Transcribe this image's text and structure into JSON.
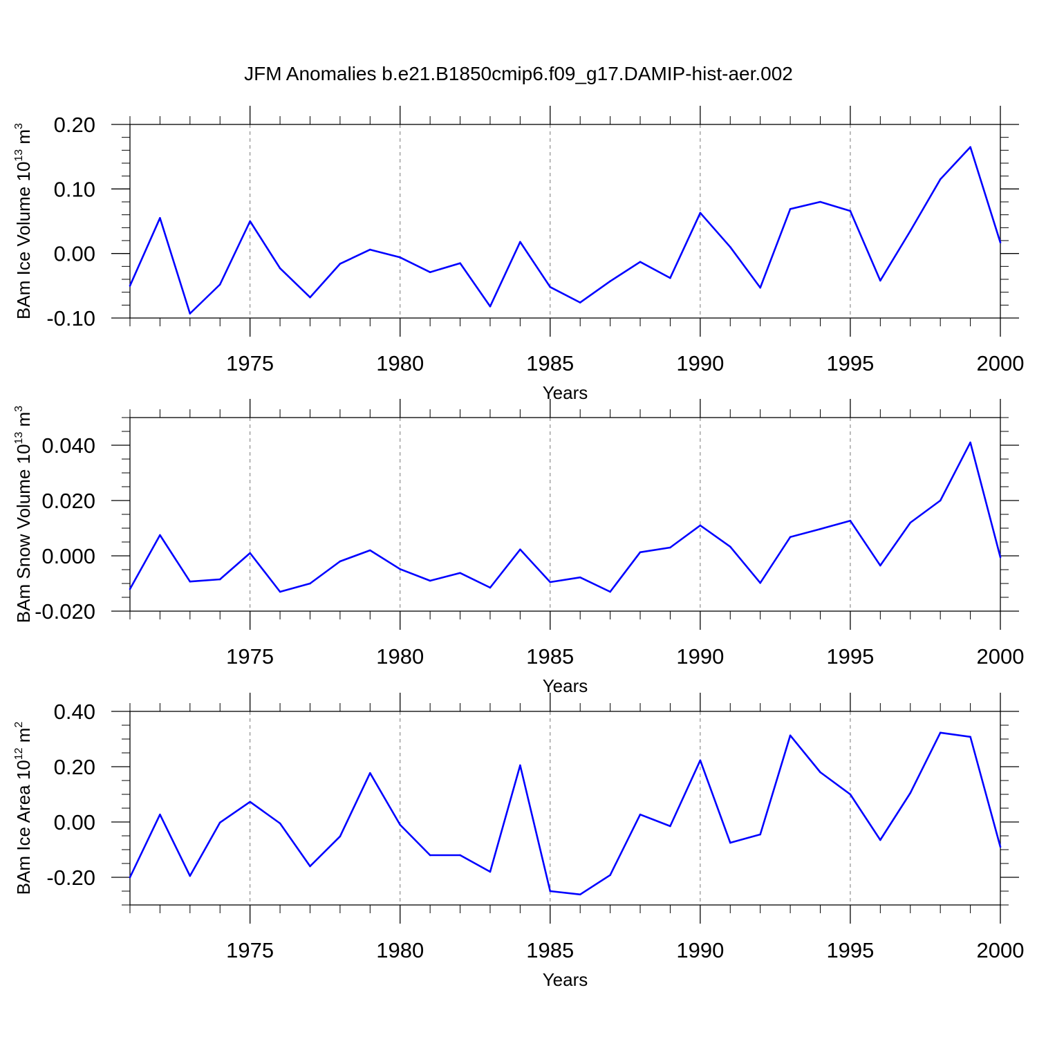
{
  "title": "JFM Anomalies b.e21.B1850cmip6.f09_g17.DAMIP-hist-aer.002",
  "line_color": "#0000ff",
  "chart_data": [
    {
      "type": "line",
      "ylabel_main": "BAm Ice Volume 10",
      "ylabel_exp": "13",
      "ylabel_tail": " m",
      "ylabel_unit_exp": "3",
      "xlabel": "Years",
      "xlim": [
        1971,
        2000
      ],
      "ylim": [
        -0.1,
        0.2
      ],
      "yticks": [
        -0.1,
        0.0,
        0.1,
        0.2
      ],
      "ytick_labels": [
        "-0.10",
        "0.00",
        "0.10",
        "0.20"
      ],
      "yminor_step": 0.02,
      "xticks": [
        1975,
        1980,
        1985,
        1990,
        1995,
        2000
      ],
      "xtick_labels": [
        "1975",
        "1980",
        "1985",
        "1990",
        "1995",
        "2000"
      ],
      "x": [
        1971,
        1972,
        1973,
        1974,
        1975,
        1976,
        1977,
        1978,
        1979,
        1980,
        1981,
        1982,
        1983,
        1984,
        1985,
        1986,
        1987,
        1988,
        1989,
        1990,
        1991,
        1992,
        1993,
        1994,
        1995,
        1996,
        1997,
        1998,
        1999,
        2000
      ],
      "values": [
        -0.05,
        0.055,
        -0.093,
        -0.048,
        0.05,
        -0.023,
        -0.068,
        -0.016,
        0.006,
        -0.006,
        -0.029,
        -0.015,
        -0.082,
        0.018,
        -0.052,
        -0.076,
        -0.043,
        -0.013,
        -0.038,
        0.063,
        0.01,
        -0.053,
        0.069,
        0.08,
        0.066,
        -0.042,
        0.035,
        0.115,
        0.165,
        0.017
      ]
    },
    {
      "type": "line",
      "ylabel_main": "BAm Snow Volume 10",
      "ylabel_exp": "13",
      "ylabel_tail": " m",
      "ylabel_unit_exp": "3",
      "xlabel": "Years",
      "xlim": [
        1971,
        2000
      ],
      "ylim": [
        -0.02,
        0.05
      ],
      "yticks": [
        -0.02,
        0.0,
        0.02,
        0.04
      ],
      "ytick_labels": [
        "-0.020",
        "0.000",
        "0.020",
        "0.040"
      ],
      "yminor_step": 0.005,
      "xticks": [
        1975,
        1980,
        1985,
        1990,
        1995,
        2000
      ],
      "xtick_labels": [
        "1975",
        "1980",
        "1985",
        "1990",
        "1995",
        "2000"
      ],
      "x": [
        1971,
        1972,
        1973,
        1974,
        1975,
        1976,
        1977,
        1978,
        1979,
        1980,
        1981,
        1982,
        1983,
        1984,
        1985,
        1986,
        1987,
        1988,
        1989,
        1990,
        1991,
        1992,
        1993,
        1994,
        1995,
        1996,
        1997,
        1998,
        1999,
        2000
      ],
      "values": [
        -0.012,
        0.0075,
        -0.0093,
        -0.0085,
        0.001,
        -0.013,
        -0.01,
        -0.002,
        0.002,
        -0.0048,
        -0.009,
        -0.0062,
        -0.0115,
        0.0023,
        -0.0095,
        -0.0078,
        -0.013,
        0.0013,
        0.003,
        0.011,
        0.0033,
        -0.0098,
        0.0068,
        0.0097,
        0.0127,
        -0.0035,
        0.012,
        0.02,
        0.041,
        -0.0005
      ]
    },
    {
      "type": "line",
      "ylabel_main": "BAm Ice Area 10",
      "ylabel_exp": "12",
      "ylabel_tail": " m",
      "ylabel_unit_exp": "2",
      "xlabel": "Years",
      "xlim": [
        1971,
        2000
      ],
      "ylim": [
        -0.3,
        0.4
      ],
      "yticks": [
        -0.2,
        0.0,
        0.2,
        0.4
      ],
      "ytick_labels": [
        "-0.20",
        "0.00",
        "0.20",
        "0.40"
      ],
      "yminor_step": 0.05,
      "xticks": [
        1975,
        1980,
        1985,
        1990,
        1995,
        2000
      ],
      "xtick_labels": [
        "1975",
        "1980",
        "1985",
        "1990",
        "1995",
        "2000"
      ],
      "x": [
        1971,
        1972,
        1973,
        1974,
        1975,
        1976,
        1977,
        1978,
        1979,
        1980,
        1981,
        1982,
        1983,
        1984,
        1985,
        1986,
        1987,
        1988,
        1989,
        1990,
        1991,
        1992,
        1993,
        1994,
        1995,
        1996,
        1997,
        1998,
        1999,
        2000
      ],
      "values": [
        -0.2,
        0.027,
        -0.195,
        -0.002,
        0.073,
        -0.005,
        -0.16,
        -0.052,
        0.177,
        -0.01,
        -0.12,
        -0.12,
        -0.18,
        0.205,
        -0.25,
        -0.262,
        -0.192,
        0.027,
        -0.015,
        0.223,
        -0.075,
        -0.045,
        0.313,
        0.18,
        0.1,
        -0.065,
        0.105,
        0.323,
        0.308,
        -0.09
      ]
    }
  ]
}
